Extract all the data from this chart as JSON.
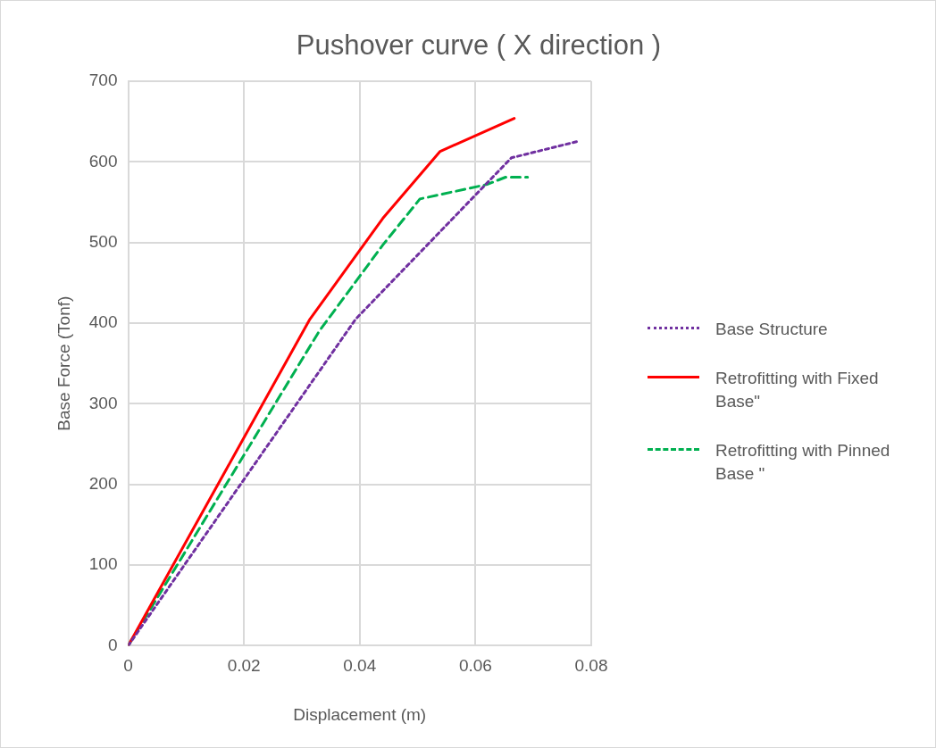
{
  "chart_data": {
    "type": "line",
    "title": "Pushover curve ( X direction )",
    "xlabel": "Displacement (m)",
    "ylabel": "Base Force (Tonf)",
    "xlim": [
      0,
      0.08
    ],
    "xticks": [
      0,
      0.02,
      0.04,
      0.06,
      0.08
    ],
    "ylim": [
      0,
      700
    ],
    "yticks": [
      0,
      100,
      200,
      300,
      400,
      500,
      600,
      700
    ],
    "grid": true,
    "legend": "right",
    "marker": "none",
    "series": [
      {
        "name": "Base Structure",
        "color": "#7030a0",
        "line_style": "dotted",
        "x": [
          0,
          0.0393,
          0.0662,
          0.078
        ],
        "values": [
          0,
          405,
          605,
          626
        ]
      },
      {
        "name": "Retrofitting with Fixed Base\"",
        "color": "#ff0000",
        "line_style": "solid",
        "x": [
          0,
          0.0314,
          0.044,
          0.0539,
          0.0667
        ],
        "values": [
          0,
          405,
          530,
          613,
          654
        ]
      },
      {
        "name": "Retrofitting with Pinned Base \"",
        "color": "#00b050",
        "line_style": "dashed",
        "x": [
          0,
          0.033,
          0.044,
          0.0504,
          0.062,
          0.0652,
          0.069
        ],
        "values": [
          0,
          390,
          497,
          554,
          572,
          581,
          581
        ]
      }
    ]
  }
}
